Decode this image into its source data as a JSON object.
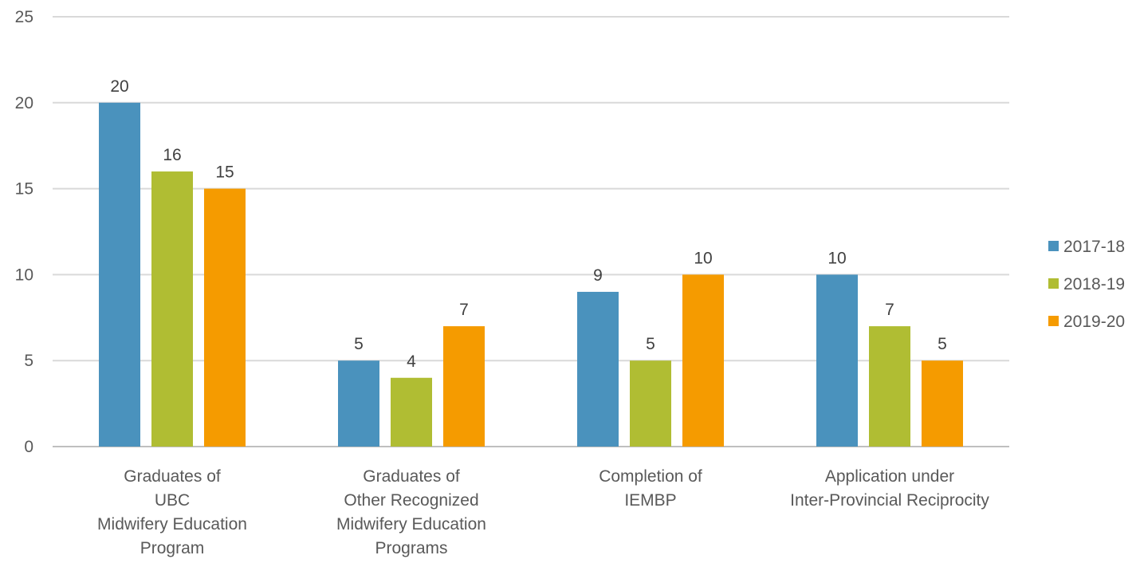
{
  "chart_data": {
    "type": "bar",
    "categories": [
      [
        "Graduates of",
        "UBC",
        "Midwifery Education",
        "Program"
      ],
      [
        "Graduates of",
        "Other Recognized",
        "Midwifery Education",
        "Programs"
      ],
      [
        "Completion of",
        "IEMBP"
      ],
      [
        "Application under",
        "Inter-Provincial Reciprocity"
      ]
    ],
    "series": [
      {
        "name": "2017-18",
        "color": "#4a92bd",
        "values": [
          20,
          5,
          9,
          10
        ]
      },
      {
        "name": "2018-19",
        "color": "#b0bd33",
        "values": [
          16,
          4,
          5,
          7
        ]
      },
      {
        "name": "2019-20",
        "color": "#f59b00",
        "values": [
          15,
          7,
          10,
          5
        ]
      }
    ],
    "ylim": [
      0,
      25
    ],
    "yticks": [
      0,
      5,
      10,
      15,
      20,
      25
    ],
    "grid": true,
    "legend": "right",
    "data_labels": true
  }
}
